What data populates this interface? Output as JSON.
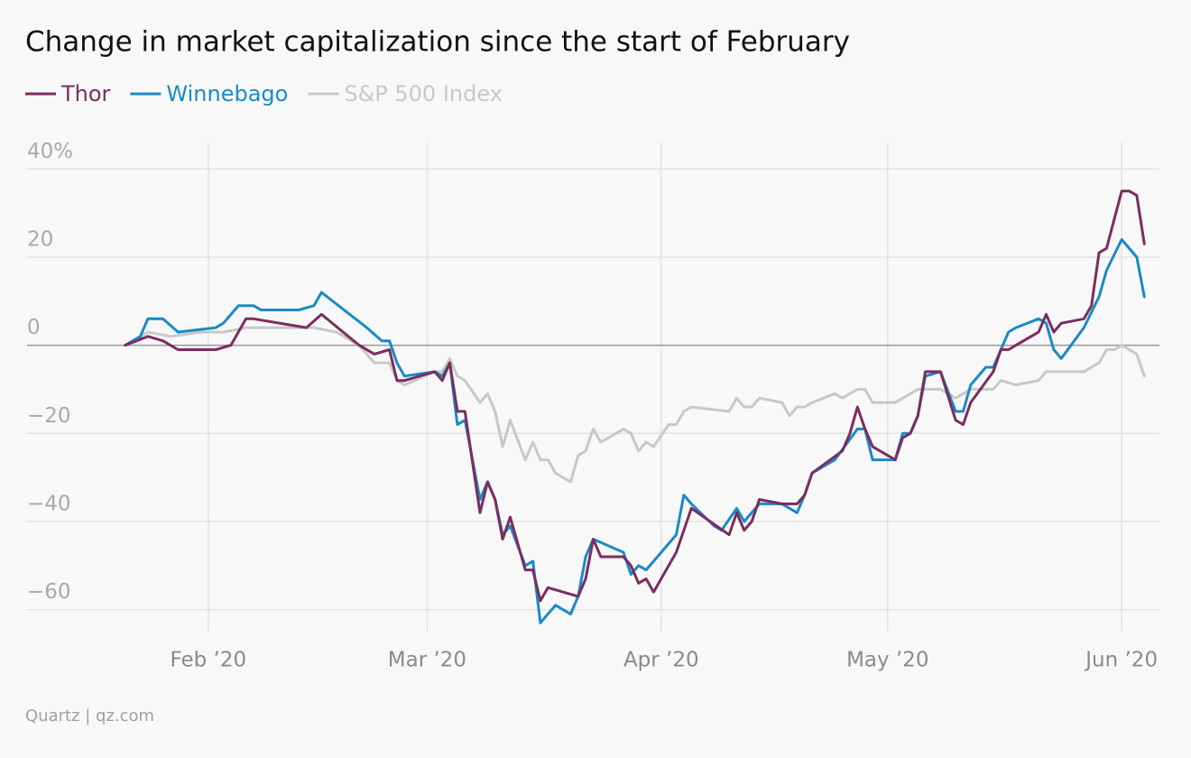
{
  "chart_data": {
    "type": "line",
    "title": "Change in market capitalization since the start of February",
    "source": "Quartz | qz.com",
    "xlim": [
      8,
      158
    ],
    "xticks": [
      {
        "value": 32,
        "label": "Feb ’20"
      },
      {
        "value": 61,
        "label": "Mar ’20"
      },
      {
        "value": 92,
        "label": "Apr ’20"
      },
      {
        "value": 122,
        "label": "May ’20"
      },
      {
        "value": 153,
        "label": "Jun ’20"
      }
    ],
    "ylim": [
      -65,
      46
    ],
    "yticks": [
      {
        "value": 40,
        "label": "40%"
      },
      20,
      0,
      {
        "value": -20,
        "label": "−20"
      },
      {
        "value": -40,
        "label": "−40"
      },
      {
        "value": -60,
        "label": "−60"
      }
    ],
    "grid": true,
    "series": [
      {
        "name": "Thor",
        "color": "#7b2d5e",
        "x": [
          21,
          24,
          26,
          28,
          33,
          35,
          37,
          38,
          45,
          47,
          52,
          54,
          56,
          57,
          58,
          62,
          63,
          64,
          65,
          66,
          68,
          69,
          70,
          71,
          72,
          74,
          75,
          76,
          77,
          81,
          82,
          83,
          84,
          87,
          88,
          89,
          90,
          91,
          94,
          96,
          101,
          102,
          103,
          104,
          105,
          108,
          109,
          110,
          111,
          112,
          116,
          117,
          118,
          119,
          120,
          123,
          124,
          125,
          126,
          127,
          129,
          131,
          132,
          133,
          136,
          137,
          138,
          139,
          142,
          143,
          144,
          145,
          148,
          149,
          150,
          151,
          153,
          154,
          155,
          156
        ],
        "values": [
          0,
          2,
          1,
          -1,
          -1,
          0,
          6,
          6,
          4,
          7,
          0,
          -2,
          -1,
          -8,
          -8,
          -6,
          -8,
          -4,
          -15,
          -15,
          -38,
          -31,
          -35,
          -44,
          -39,
          -51,
          -51,
          -58,
          -55,
          -57,
          -53,
          -44,
          -48,
          -48,
          -50,
          -54,
          -53,
          -56,
          -47,
          -37,
          -43,
          -38,
          -42,
          -40,
          -35,
          -36,
          -36,
          -36,
          -34,
          -29,
          -24,
          -20,
          -14,
          -19,
          -23,
          -26,
          -21,
          -20,
          -16,
          -6,
          -6,
          -17,
          -18,
          -13,
          -6,
          -1,
          -1,
          0,
          3,
          7,
          3,
          5,
          6,
          9,
          21,
          22,
          35,
          35,
          34,
          23
        ]
      },
      {
        "name": "Winnebago",
        "color": "#1a8ac6",
        "x": [
          21,
          23,
          24,
          26,
          28,
          33,
          34,
          36,
          38,
          39,
          44,
          46,
          47,
          53,
          55,
          56,
          57,
          58,
          62,
          63,
          64,
          65,
          66,
          68,
          69,
          70,
          71,
          72,
          74,
          75,
          76,
          78,
          80,
          81,
          82,
          83,
          87,
          88,
          89,
          90,
          94,
          95,
          96,
          99,
          100,
          102,
          103,
          105,
          108,
          110,
          111,
          112,
          115,
          118,
          119,
          120,
          123,
          124,
          125,
          126,
          127,
          129,
          131,
          132,
          133,
          135,
          136,
          138,
          139,
          142,
          143,
          144,
          145,
          148,
          150,
          151,
          153,
          155,
          156
        ],
        "values": [
          0,
          2,
          6,
          6,
          3,
          4,
          5,
          9,
          9,
          8,
          8,
          9,
          12,
          4,
          1,
          1,
          -4,
          -7,
          -6,
          -7,
          -4,
          -18,
          -17,
          -35,
          -31,
          -35,
          -43,
          -41,
          -50,
          -49,
          -63,
          -59,
          -61,
          -57,
          -48,
          -44,
          -47,
          -52,
          -50,
          -51,
          -43,
          -34,
          -36,
          -41,
          -42,
          -37,
          -40,
          -36,
          -36,
          -38,
          -34,
          -29,
          -26,
          -19,
          -19,
          -26,
          -26,
          -20,
          -20,
          -16,
          -7,
          -6,
          -15,
          -15,
          -9,
          -5,
          -5,
          3,
          4,
          6,
          5,
          -1,
          -3,
          4,
          11,
          17,
          24,
          20,
          11
        ]
      },
      {
        "name": "S&P 500 Index",
        "color": "#c8c8c8",
        "x": [
          21,
          24,
          27,
          31,
          34,
          37,
          46,
          49,
          52,
          54,
          56,
          57,
          58,
          62,
          63,
          64,
          65,
          66,
          68,
          69,
          70,
          71,
          72,
          74,
          75,
          76,
          77,
          78,
          80,
          81,
          82,
          83,
          84,
          87,
          88,
          89,
          90,
          91,
          93,
          94,
          95,
          96,
          101,
          102,
          103,
          104,
          105,
          108,
          109,
          110,
          111,
          112,
          115,
          116,
          118,
          119,
          120,
          123,
          124,
          126,
          127,
          129,
          131,
          133,
          135,
          136,
          137,
          139,
          142,
          143,
          144,
          148,
          150,
          151,
          152,
          153,
          155,
          156
        ],
        "values": [
          0,
          3,
          2,
          3,
          3,
          4,
          4,
          3,
          0,
          -4,
          -4,
          -8,
          -9,
          -6,
          -6,
          -3,
          -7,
          -8,
          -13,
          -11,
          -15,
          -23,
          -17,
          -26,
          -22,
          -26,
          -26,
          -29,
          -31,
          -25,
          -24,
          -19,
          -22,
          -19,
          -20,
          -24,
          -22,
          -23,
          -18,
          -18,
          -15,
          -14,
          -15,
          -12,
          -14,
          -14,
          -12,
          -13,
          -16,
          -14,
          -14,
          -13,
          -11,
          -12,
          -10,
          -10,
          -13,
          -13,
          -12,
          -10,
          -10,
          -10,
          -12,
          -10,
          -10,
          -10,
          -8,
          -9,
          -8,
          -6,
          -6,
          -6,
          -4,
          -1,
          -1,
          0,
          -2,
          -7
        ]
      }
    ]
  }
}
